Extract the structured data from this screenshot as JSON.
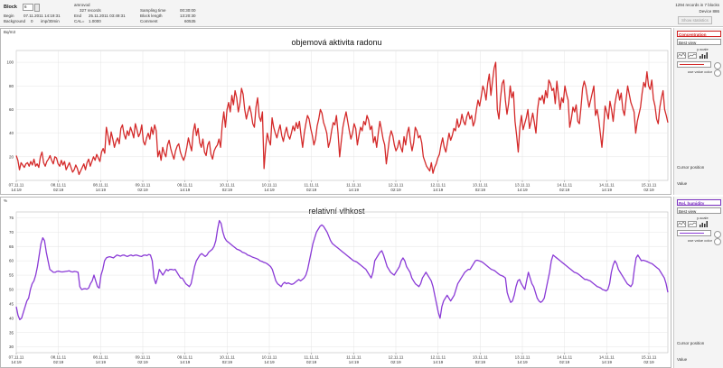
{
  "header": {
    "block_label": "Block",
    "block_value": "6",
    "begin_label": "Begin",
    "begin_value": "07.11.2011 14:19:31",
    "background_label": "Background",
    "background_value": "0",
    "background_unit": "imp/30min",
    "name": "amrovod",
    "records": "327 records",
    "end_label": "End",
    "end_value": "25.11.2011 03:49:31",
    "cal_label": "CAL=",
    "cal_value": "1.0000",
    "sampling_label": "Sampling time",
    "sampling_value": "00:30:00",
    "blocklength_label": "Block length",
    "blocklength_value": "13:20:30",
    "comment_label": "Comment",
    "comment_value": "60535",
    "records_in_blocks": "1294 records in 7 blocks",
    "device": "Device 886",
    "statistics_button": "Show statistics"
  },
  "charts": [
    {
      "id": "radon",
      "corner_label": "Bq/m3",
      "title": "objemová aktivita radonu",
      "color": "#d42a2a",
      "series_select": "Concentration",
      "view_select": "Best view",
      "scale_text": "y-scale",
      "color_text": "use value color",
      "cursor_label": "Cursor position",
      "value_label": "Value",
      "ylim": [
        0,
        110
      ],
      "yticks": [
        20,
        40,
        60,
        80,
        100
      ],
      "xticks": [
        {
          "date": "07.11.11",
          "time": "14:19"
        },
        {
          "date": "08.11.11",
          "time": "02:19"
        },
        {
          "date": "08.11.11",
          "time": "14:19"
        },
        {
          "date": "09.11.11",
          "time": "02:19"
        },
        {
          "date": "09.11.11",
          "time": "14:19"
        },
        {
          "date": "10.11.11",
          "time": "02:19"
        },
        {
          "date": "10.11.11",
          "time": "14:19"
        },
        {
          "date": "11.11.11",
          "time": "02:19"
        },
        {
          "date": "11.11.11",
          "time": "14:19"
        },
        {
          "date": "12.11.11",
          "time": "02:19"
        },
        {
          "date": "12.11.11",
          "time": "14:19"
        },
        {
          "date": "13.11.11",
          "time": "02:19"
        },
        {
          "date": "13.11.11",
          "time": "14:19"
        },
        {
          "date": "14.11.11",
          "time": "02:19"
        },
        {
          "date": "14.11.11",
          "time": "14:19"
        },
        {
          "date": "15.11.11",
          "time": "02:19"
        }
      ]
    },
    {
      "id": "humidity",
      "corner_label": "%",
      "title": "relativní vlhkost",
      "color": "#8a3ad6",
      "series_select": "Rel. humidity",
      "view_select": "Best view",
      "scale_text": "y-scale",
      "color_text": "use value color",
      "cursor_label": "Cursor position",
      "value_label": "Value",
      "ylim": [
        28,
        77
      ],
      "yticks": [
        30,
        35,
        40,
        45,
        50,
        55,
        60,
        65,
        70,
        75
      ],
      "xticks": [
        {
          "date": "07.11.11",
          "time": "14:19"
        },
        {
          "date": "08.11.11",
          "time": "02:19"
        },
        {
          "date": "08.11.11",
          "time": "14:19"
        },
        {
          "date": "09.11.11",
          "time": "02:19"
        },
        {
          "date": "09.11.11",
          "time": "14:19"
        },
        {
          "date": "10.11.11",
          "time": "02:19"
        },
        {
          "date": "10.11.11",
          "time": "14:19"
        },
        {
          "date": "11.11.11",
          "time": "02:19"
        },
        {
          "date": "11.11.11",
          "time": "14:19"
        },
        {
          "date": "12.11.11",
          "time": "02:19"
        },
        {
          "date": "12.11.11",
          "time": "14:19"
        },
        {
          "date": "13.11.11",
          "time": "02:19"
        },
        {
          "date": "13.11.11",
          "time": "14:19"
        },
        {
          "date": "14.11.11",
          "time": "02:19"
        },
        {
          "date": "14.11.11",
          "time": "14:19"
        },
        {
          "date": "15.11.11",
          "time": "02:19"
        }
      ]
    }
  ],
  "chart_data": [
    {
      "type": "line",
      "title": "objemová aktivita radonu",
      "ylabel": "Bq/m3",
      "ylim": [
        0,
        110
      ],
      "x_start": "07.11.11 14:19",
      "sampling": "00:30:00",
      "values": [
        21,
        17,
        9,
        15,
        13,
        11,
        14,
        15,
        12,
        16,
        13,
        18,
        12,
        14,
        11,
        20,
        24,
        15,
        12,
        16,
        18,
        21,
        17,
        14,
        20,
        19,
        14,
        12,
        17,
        13,
        16,
        9,
        12,
        15,
        11,
        7,
        9,
        13,
        10,
        5,
        8,
        11,
        14,
        9,
        15,
        18,
        12,
        16,
        20,
        17,
        22,
        19,
        16,
        24,
        27,
        23,
        45,
        38,
        30,
        41,
        35,
        28,
        33,
        36,
        31,
        44,
        47,
        39,
        35,
        42,
        38,
        45,
        41,
        36,
        48,
        43,
        37,
        40,
        47,
        33,
        30,
        36,
        40,
        35,
        45,
        39,
        47,
        42,
        20,
        25,
        17,
        28,
        23,
        20,
        30,
        34,
        27,
        22,
        18,
        25,
        29,
        31,
        24,
        20,
        17,
        21,
        28,
        36,
        30,
        25,
        41,
        48,
        38,
        44,
        32,
        28,
        35,
        24,
        21,
        30,
        33,
        22,
        18,
        25,
        28,
        30,
        35,
        28,
        47,
        58,
        45,
        60,
        66,
        58,
        72,
        64,
        76,
        70,
        58,
        65,
        78,
        73,
        60,
        52,
        58,
        63,
        57,
        48,
        45,
        62,
        70,
        54,
        50,
        58,
        10,
        28,
        40,
        34,
        30,
        53,
        45,
        40,
        36,
        42,
        47,
        38,
        33,
        40,
        45,
        38,
        35,
        40,
        46,
        42,
        49,
        44,
        50,
        38,
        28,
        40,
        48,
        55,
        52,
        44,
        38,
        30,
        35,
        46,
        52,
        60,
        57,
        49,
        45,
        40,
        28,
        33,
        42,
        49,
        47,
        55,
        40,
        20,
        33,
        45,
        52,
        58,
        50,
        42,
        35,
        40,
        48,
        44,
        30,
        38,
        45,
        42,
        50,
        47,
        55,
        51,
        43,
        46,
        32,
        37,
        28,
        40,
        50,
        43,
        35,
        30,
        14,
        25,
        36,
        42,
        38,
        30,
        25,
        28,
        34,
        28,
        24,
        37,
        30,
        40,
        45,
        33,
        25,
        32,
        45,
        42,
        36,
        38,
        32,
        20,
        16,
        12,
        10,
        8,
        15,
        6,
        11,
        14,
        19,
        22,
        30,
        36,
        28,
        24,
        32,
        40,
        34,
        38,
        44,
        42,
        52,
        45,
        48,
        56,
        50,
        47,
        54,
        58,
        52,
        55,
        46,
        50,
        60,
        68,
        63,
        71,
        80,
        76,
        68,
        82,
        90,
        72,
        84,
        95,
        100,
        60,
        52,
        70,
        82,
        85,
        68,
        56,
        65,
        80,
        70,
        75,
        50,
        38,
        24,
        45,
        55,
        43,
        48,
        53,
        60,
        44,
        50,
        57,
        49,
        40,
        60,
        70,
        68,
        72,
        65,
        76,
        70,
        85,
        82,
        76,
        78,
        65,
        84,
        72,
        60,
        70,
        66,
        80,
        73,
        68,
        45,
        52,
        62,
        58,
        64,
        50,
        48,
        62,
        78,
        84,
        79,
        70,
        62,
        68,
        74,
        80,
        55,
        60,
        52,
        40,
        28,
        44,
        63,
        58,
        52,
        67,
        60,
        50,
        64,
        72,
        77,
        68,
        74,
        60,
        55,
        68,
        80,
        73,
        66,
        62,
        58,
        40,
        50,
        56,
        62,
        74,
        83,
        79,
        92,
        80,
        77,
        85,
        69,
        63,
        52,
        48,
        62,
        70,
        76,
        60,
        55,
        49
      ]
    },
    {
      "type": "line",
      "title": "relativní vlhkost",
      "ylabel": "%",
      "ylim": [
        28,
        77
      ],
      "x_start": "07.11.11 14:19",
      "sampling": "00:30:00",
      "values": [
        44,
        41,
        39.5,
        40,
        42,
        44,
        46,
        47,
        50,
        52,
        53,
        55,
        58,
        62,
        66,
        68,
        67,
        63,
        60,
        57,
        56.5,
        56,
        56,
        56.3,
        56.4,
        56.2,
        56.1,
        56.2,
        56.3,
        56.4,
        56.5,
        56.2,
        56.1,
        56.3,
        56.2,
        56,
        51,
        50,
        50.2,
        50.3,
        50.1,
        50.5,
        52,
        53,
        55,
        53,
        51,
        50.5,
        55,
        57,
        60,
        61,
        61.3,
        61.4,
        61.2,
        61,
        61.5,
        62,
        61.8,
        61.6,
        61.9,
        62,
        61.7,
        61.5,
        61.8,
        62,
        61.7,
        61.9,
        62,
        61.8,
        61.6,
        61.5,
        61.9,
        62,
        61.8,
        62.2,
        62,
        60,
        54,
        52,
        54,
        57,
        56,
        55,
        56,
        57,
        56.5,
        57,
        57,
        56.8,
        57,
        56,
        55,
        54,
        54,
        53,
        52,
        51.5,
        51,
        52,
        55,
        58,
        60,
        61,
        62,
        62.5,
        62,
        61.5,
        62,
        63,
        63.5,
        64,
        65,
        67,
        71,
        74,
        73,
        70,
        68,
        67,
        66.5,
        66,
        65.5,
        65,
        64.5,
        64,
        63.8,
        63.5,
        63,
        62.8,
        62.5,
        62,
        61.8,
        61.5,
        61.2,
        61,
        60.8,
        60.5,
        60,
        59.8,
        59.5,
        59.3,
        59,
        58.5,
        58,
        57,
        55,
        53,
        52,
        51.5,
        51,
        52,
        52.5,
        52,
        52.3,
        52,
        51.8,
        52,
        52.5,
        53,
        53.5,
        53,
        53.5,
        54,
        55,
        57,
        60,
        63,
        66,
        68,
        70,
        71,
        72,
        72.5,
        72,
        71,
        70,
        68.5,
        67,
        66,
        65.5,
        65,
        64.5,
        64,
        63.5,
        63,
        62.5,
        62,
        61.5,
        61,
        60.5,
        60,
        59.8,
        59.5,
        59,
        58.5,
        58,
        57.5,
        57,
        56,
        55,
        54,
        56,
        60,
        61,
        62,
        63,
        63.5,
        62,
        60,
        58,
        57,
        56,
        55.5,
        55,
        56,
        57,
        58,
        60,
        61,
        60,
        58,
        57,
        56,
        54,
        53,
        52,
        51.5,
        51,
        52,
        54,
        55,
        56,
        55,
        54,
        53,
        51,
        48,
        45,
        42,
        40,
        44,
        46,
        47,
        48,
        47,
        46,
        47,
        48,
        50,
        52,
        53,
        54,
        55,
        56,
        56.5,
        57,
        57,
        58,
        59,
        60,
        60.2,
        60,
        59.8,
        59.5,
        59,
        58.5,
        58,
        57.5,
        57,
        56.8,
        56.5,
        56,
        55.5,
        55,
        54.8,
        54.5,
        54,
        49,
        47,
        45.5,
        46,
        48,
        51,
        53,
        53.5,
        52,
        51,
        50,
        53,
        56,
        54,
        52,
        51,
        49,
        47,
        46,
        45.5,
        46,
        47,
        50,
        53,
        56,
        60,
        62,
        61.5,
        61,
        60.5,
        60,
        59.5,
        59,
        58.5,
        58,
        57.5,
        57,
        56.5,
        56,
        55.8,
        55.5,
        55,
        54.5,
        54,
        53.5,
        53.5,
        53.2,
        53,
        52.5,
        52,
        51.5,
        51,
        50.8,
        50.5,
        50,
        49.8,
        49.5,
        50,
        52,
        56,
        58.5,
        60,
        59,
        57,
        56,
        55,
        54,
        53,
        52,
        51.5,
        51,
        52,
        57,
        61,
        62,
        61,
        60,
        60.2,
        60,
        59.8,
        59.5,
        59.2,
        59,
        58.5,
        58,
        57.5,
        57,
        56,
        55,
        54,
        52,
        49
      ]
    }
  ]
}
